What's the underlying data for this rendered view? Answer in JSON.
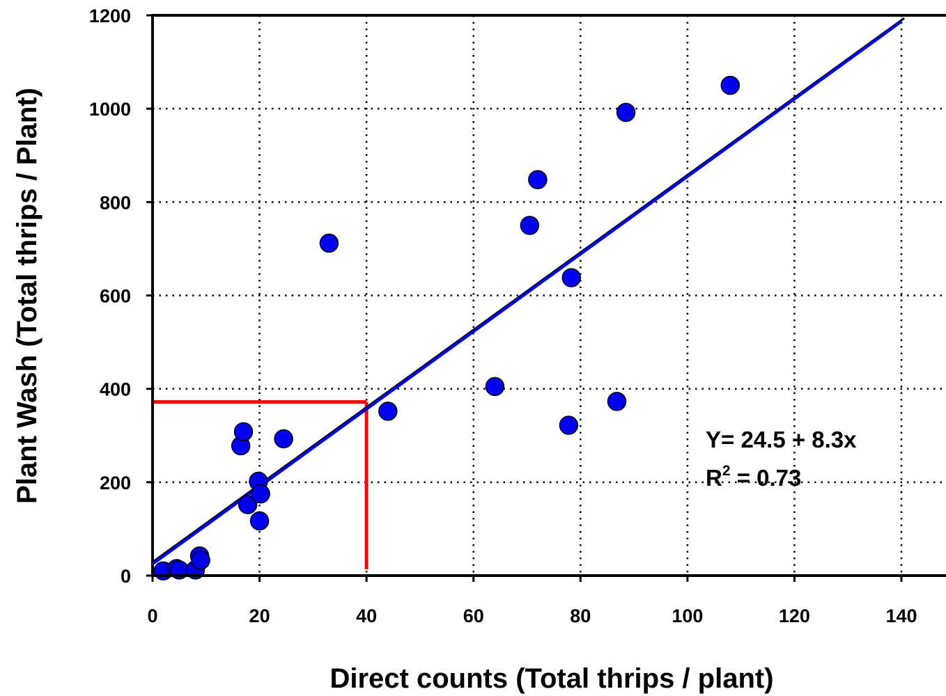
{
  "chart_data": {
    "type": "scatter",
    "title": "",
    "xlabel": "Direct counts  (Total thrips / plant)",
    "ylabel": "Plant Wash  (Total thrips / Plant)",
    "xlim": [
      0,
      140
    ],
    "ylim": [
      0,
      1200
    ],
    "x_ticks": [
      "0",
      "20",
      "40",
      "60",
      "80",
      "100",
      "120",
      "140"
    ],
    "y_ticks": [
      "0",
      "200",
      "400",
      "600",
      "800",
      "1000",
      "1200"
    ],
    "grid": "dotted",
    "series": [
      {
        "color": "#0000ee",
        "points": [
          {
            "x": 2,
            "y": 10
          },
          {
            "x": 4.5,
            "y": 15
          },
          {
            "x": 5,
            "y": 12
          },
          {
            "x": 8,
            "y": 12
          },
          {
            "x": 8.8,
            "y": 42
          },
          {
            "x": 9,
            "y": 33
          },
          {
            "x": 16.5,
            "y": 278
          },
          {
            "x": 17,
            "y": 308
          },
          {
            "x": 17.8,
            "y": 152
          },
          {
            "x": 19.8,
            "y": 202
          },
          {
            "x": 20.2,
            "y": 175
          },
          {
            "x": 20,
            "y": 117
          },
          {
            "x": 24.5,
            "y": 293
          },
          {
            "x": 33,
            "y": 712
          },
          {
            "x": 44,
            "y": 352
          },
          {
            "x": 64,
            "y": 405
          },
          {
            "x": 70.5,
            "y": 750
          },
          {
            "x": 72,
            "y": 848
          },
          {
            "x": 77.8,
            "y": 322
          },
          {
            "x": 78.3,
            "y": 638
          },
          {
            "x": 86.8,
            "y": 373
          },
          {
            "x": 88.5,
            "y": 992
          },
          {
            "x": 108,
            "y": 1050
          }
        ]
      }
    ],
    "regression": {
      "intercept": 24.5,
      "slope": 8.3,
      "x_range": [
        0,
        140
      ],
      "color": "#0000ee",
      "equation_text": "Y= 24.5 + 8.3x",
      "r2_prefix": "R",
      "r2_sup": "2",
      "r2_suffix": " = 0.73"
    },
    "reference_line": {
      "x": 40,
      "y": 372,
      "color": "#ff0000"
    }
  }
}
